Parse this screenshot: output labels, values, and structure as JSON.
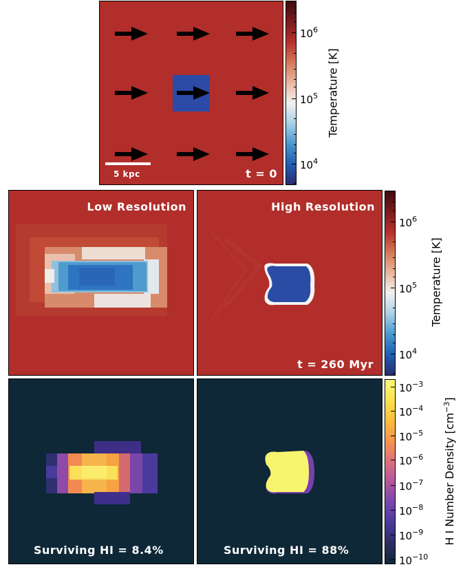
{
  "panels": {
    "initial": {
      "time_label": "t = 0",
      "scalebar_label": "5 kpc"
    },
    "low_res_temp": {
      "title": "Low Resolution"
    },
    "high_res_temp": {
      "title": "High Resolution",
      "time_label": "t = 260 Myr"
    },
    "low_res_hi": {
      "caption": "Surviving HI = 8.4%"
    },
    "high_res_hi": {
      "caption": "Surviving HI = 88%"
    }
  },
  "colorbars": {
    "temperature": {
      "label": "Temperature [K]",
      "ticks": [
        {
          "base": "10",
          "exp": "6"
        },
        {
          "base": "10",
          "exp": "5"
        },
        {
          "base": "10",
          "exp": "4"
        }
      ],
      "range_log": [
        3.7,
        6.5
      ],
      "colors": [
        "#2a2c70",
        "#1f5fb0",
        "#4a97cf",
        "#a9d0e6",
        "#f1f1f1",
        "#ebb69e",
        "#d57858",
        "#b5302a",
        "#7a1c1e",
        "#3f0b12"
      ]
    },
    "hi_density": {
      "label_prefix": "H I Number Density [cm",
      "label_exp": "−3",
      "label_suffix": "]",
      "ticks": [
        {
          "base": "10",
          "exp": "−3"
        },
        {
          "base": "10",
          "exp": "−4"
        },
        {
          "base": "10",
          "exp": "−5"
        },
        {
          "base": "10",
          "exp": "−6"
        },
        {
          "base": "10",
          "exp": "−7"
        },
        {
          "base": "10",
          "exp": "−8"
        },
        {
          "base": "10",
          "exp": "−9"
        },
        {
          "base": "10",
          "exp": "−10"
        }
      ],
      "range_log": [
        -10.3,
        -2.8
      ],
      "colors": [
        "#10283a",
        "#2c2d62",
        "#4b3a9c",
        "#7a45ad",
        "#b3569c",
        "#dd6f7a",
        "#f6944e",
        "#fbbe3c",
        "#fbe24e",
        "#f7f776"
      ]
    }
  },
  "colors": {
    "hot_background": "#b12e2a",
    "cloud_blue": "#2d4aa6",
    "dark_background": "#0e2837",
    "arrow": "#000000"
  }
}
